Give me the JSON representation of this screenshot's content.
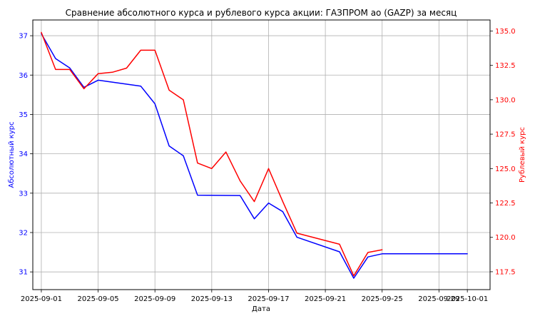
{
  "chart_data": {
    "type": "line",
    "title": "Сравнение абсолютного курса и рублевого курса акции: ГАЗПРОМ ао (GAZP) за месяц",
    "xlabel": "Дата",
    "x_ticks": [
      "2025-09-01",
      "2025-09-05",
      "2025-09-09",
      "2025-09-13",
      "2025-09-17",
      "2025-09-21",
      "2025-09-25",
      "2025-09-29",
      "2025-10-01"
    ],
    "x_range_days": [
      -0.6,
      31.6
    ],
    "grid": true,
    "left_axis": {
      "label": "Абсолютный курс",
      "color": "#0000ff",
      "ylim": [
        30.55,
        37.4
      ],
      "ticks": [
        31,
        32,
        33,
        34,
        35,
        36,
        37
      ]
    },
    "right_axis": {
      "label": "Рублевый курс",
      "color": "#ff0000",
      "ylim": [
        116.2,
        135.8
      ],
      "ticks": [
        "117.5",
        "120.0",
        "122.5",
        "125.0",
        "127.5",
        "130.0",
        "132.5",
        "135.0"
      ]
    },
    "series": [
      {
        "name": "Абсолютный курс",
        "axis": "left",
        "color": "#0000ff",
        "x_days": [
          0,
          1,
          2,
          3,
          4,
          7,
          8,
          9,
          10,
          11,
          14,
          15,
          16,
          17,
          18,
          21,
          22,
          23,
          24,
          30
        ],
        "values": [
          37.05,
          36.42,
          36.18,
          35.69,
          35.87,
          35.72,
          35.27,
          34.2,
          33.95,
          32.95,
          32.94,
          32.35,
          32.75,
          32.53,
          31.88,
          31.51,
          30.84,
          31.38,
          31.46,
          31.46
        ]
      },
      {
        "name": "Рублевый курс",
        "axis": "right",
        "color": "#ff0000",
        "x_days": [
          0,
          1,
          2,
          3,
          4,
          5,
          6,
          7,
          8,
          9,
          10,
          11,
          12,
          13,
          14,
          15,
          16,
          17,
          18,
          21,
          22,
          23,
          24
        ],
        "values": [
          134.9,
          132.2,
          132.2,
          130.8,
          131.9,
          132.0,
          132.3,
          133.6,
          133.6,
          130.7,
          130.0,
          125.4,
          125.0,
          126.2,
          124.1,
          122.6,
          125.0,
          122.6,
          120.3,
          119.5,
          117.2,
          118.9,
          119.1
        ]
      }
    ]
  }
}
